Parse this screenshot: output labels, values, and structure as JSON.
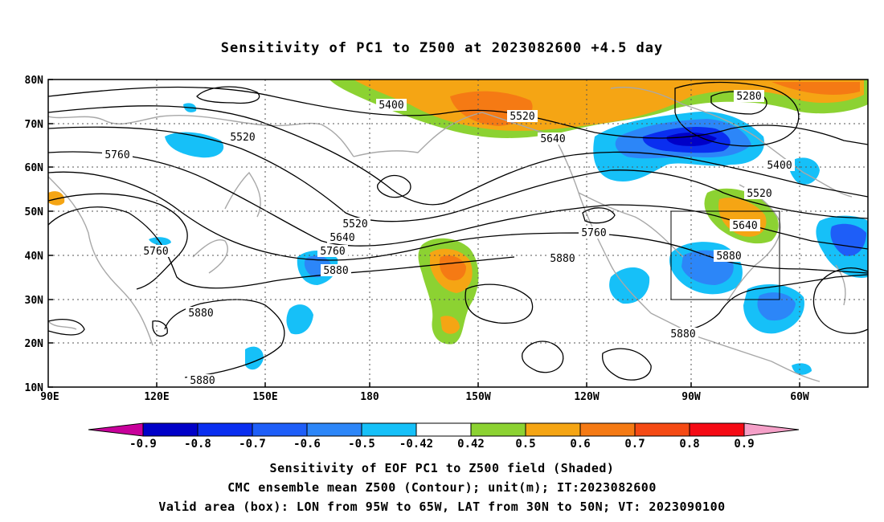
{
  "title": "Sensitivity of PC1 to Z500 at 2023082600 +4.5 day",
  "lat_labels": [
    "80N",
    "70N",
    "60N",
    "50N",
    "40N",
    "30N",
    "20N",
    "10N"
  ],
  "lon_labels": [
    "90E",
    "120E",
    "150E",
    "180",
    "150W",
    "120W",
    "90W",
    "60W"
  ],
  "contour_labels": [
    "5280",
    "5400",
    "5400",
    "5520",
    "5520",
    "5520",
    "5520",
    "5640",
    "5640",
    "5640",
    "5760",
    "5760",
    "5760",
    "5760",
    "5880",
    "5880",
    "5880",
    "5880",
    "5880",
    "5880"
  ],
  "colorbar": {
    "labels": [
      "-0.9",
      "-0.8",
      "-0.7",
      "-0.6",
      "-0.5",
      "-0.42",
      "0.42",
      "0.5",
      "0.6",
      "0.7",
      "0.8",
      "0.9"
    ],
    "colors": [
      "#c8009b",
      "#0000c8",
      "#0a2ef0",
      "#1e5ef8",
      "#2c86f8",
      "#16c0f8",
      "#ffffff",
      "#8cd232",
      "#f5a514",
      "#f57a14",
      "#f54a14",
      "#f50a14",
      "#f5a0c8"
    ]
  },
  "valid_box": {
    "lon": [
      -95,
      -65
    ],
    "lat": [
      30,
      50
    ]
  },
  "captions": [
    "Sensitivity of EOF PC1 to Z500 field (Shaded)",
    "CMC ensemble mean Z500 (Contour); unit(m); IT:2023082600",
    "Valid area (box): LON from 95W to 65W, LAT from 30N to 50N; VT: 2023090100"
  ]
}
